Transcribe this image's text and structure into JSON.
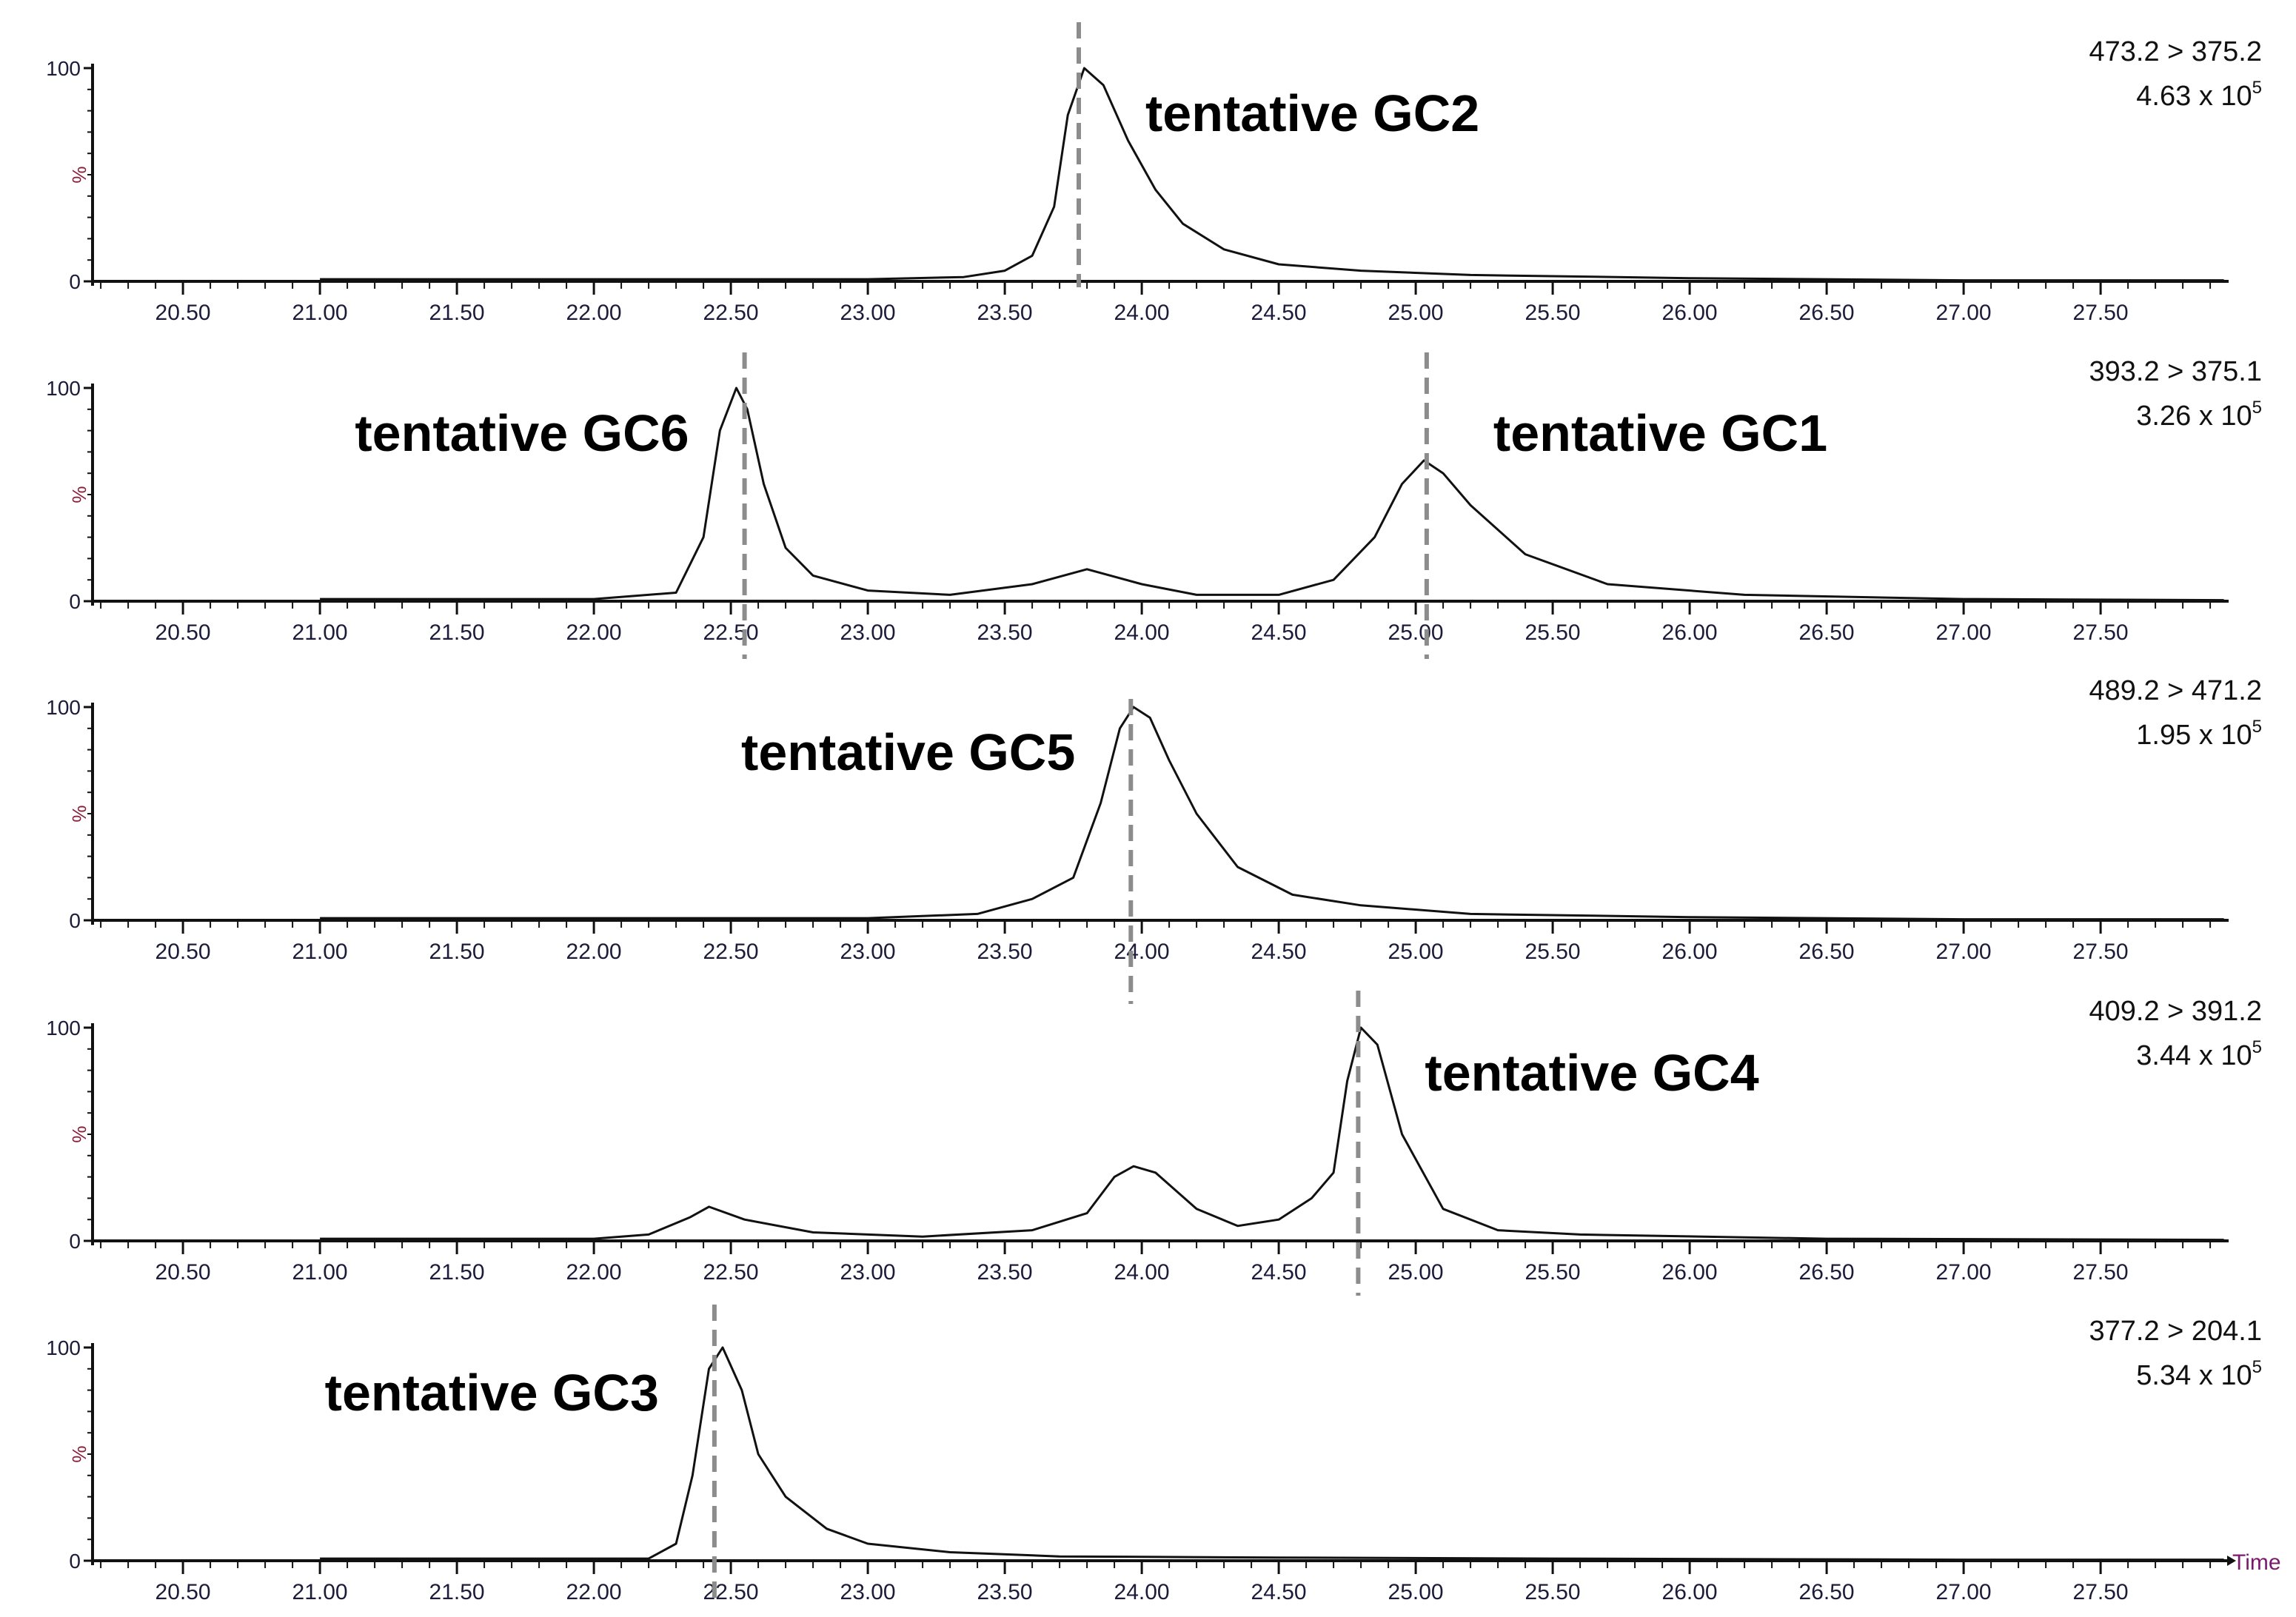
{
  "chart_data": [
    {
      "type": "line",
      "panel": 1,
      "transition": "473.2 > 375.2",
      "intensity_base": "4.63 x 10",
      "intensity_exp": "5",
      "ylabel": "%",
      "y_ticks": [
        "0",
        "100"
      ],
      "ylim": [
        0,
        100
      ],
      "xlim": [
        20.17,
        27.97
      ],
      "x_ticks": [
        "20.50",
        "21.00",
        "21.50",
        "22.00",
        "22.50",
        "23.00",
        "23.50",
        "24.00",
        "24.50",
        "25.00",
        "25.50",
        "26.00",
        "26.50",
        "27.00",
        "27.50"
      ],
      "x": [
        21.0,
        23.0,
        23.35,
        23.5,
        23.6,
        23.68,
        23.73,
        23.79,
        23.86,
        23.95,
        24.05,
        24.15,
        24.3,
        24.5,
        24.8,
        25.2,
        26.0,
        27.0,
        27.95
      ],
      "y": [
        1,
        1,
        2,
        5,
        12,
        35,
        78,
        100,
        92,
        66,
        43,
        27,
        15,
        8,
        5,
        3,
        1.5,
        0.5,
        0.5
      ],
      "markers": [
        {
          "x": 23.77,
          "label": "tentative GC2",
          "label_pos": "right"
        }
      ]
    },
    {
      "type": "line",
      "panel": 2,
      "transition": "393.2 > 375.1",
      "intensity_base": "3.26 x 10",
      "intensity_exp": "5",
      "ylabel": "%",
      "y_ticks": [
        "0",
        "100"
      ],
      "ylim": [
        0,
        100
      ],
      "xlim": [
        20.17,
        27.97
      ],
      "x_ticks": [
        "20.50",
        "21.00",
        "21.50",
        "22.00",
        "22.50",
        "23.00",
        "23.50",
        "24.00",
        "24.50",
        "25.00",
        "25.50",
        "26.00",
        "26.50",
        "27.00",
        "27.50"
      ],
      "x": [
        21.0,
        22.0,
        22.3,
        22.4,
        22.46,
        22.52,
        22.56,
        22.62,
        22.7,
        22.8,
        23.0,
        23.3,
        23.6,
        23.8,
        24.0,
        24.2,
        24.5,
        24.7,
        24.85,
        24.95,
        25.03,
        25.1,
        25.2,
        25.4,
        25.7,
        26.2,
        27.0,
        27.95
      ],
      "y": [
        1,
        1,
        4,
        30,
        80,
        100,
        90,
        55,
        25,
        12,
        5,
        3,
        8,
        15,
        8,
        3,
        3,
        10,
        30,
        55,
        66,
        60,
        45,
        22,
        8,
        3,
        1,
        0.5
      ],
      "markers": [
        {
          "x": 22.55,
          "label": "tentative GC6",
          "label_pos": "left"
        },
        {
          "x": 25.04,
          "label": "tentative GC1",
          "label_pos": "right"
        }
      ]
    },
    {
      "type": "line",
      "panel": 3,
      "transition": "489.2 > 471.2",
      "intensity_base": "1.95 x 10",
      "intensity_exp": "5",
      "ylabel": "%",
      "y_ticks": [
        "0",
        "100"
      ],
      "ylim": [
        0,
        100
      ],
      "xlim": [
        20.17,
        27.97
      ],
      "x_ticks": [
        "20.50",
        "21.00",
        "21.50",
        "22.00",
        "22.50",
        "23.00",
        "23.50",
        "24.00",
        "24.50",
        "25.00",
        "25.50",
        "26.00",
        "26.50",
        "27.00",
        "27.50"
      ],
      "x": [
        21.0,
        23.0,
        23.4,
        23.6,
        23.75,
        23.85,
        23.92,
        23.97,
        24.03,
        24.1,
        24.2,
        24.35,
        24.55,
        24.8,
        25.2,
        26.0,
        27.0,
        27.95
      ],
      "y": [
        1,
        1,
        3,
        10,
        20,
        55,
        90,
        100,
        95,
        75,
        50,
        25,
        12,
        7,
        3,
        1.5,
        0.5,
        0.5
      ],
      "markers": [
        {
          "x": 23.96,
          "label": "tentative GC5",
          "label_pos": "left"
        }
      ]
    },
    {
      "type": "line",
      "panel": 4,
      "transition": "409.2 > 391.2",
      "intensity_base": "3.44 x 10",
      "intensity_exp": "5",
      "ylabel": "%",
      "y_ticks": [
        "0",
        "100"
      ],
      "ylim": [
        0,
        100
      ],
      "xlim": [
        20.17,
        27.97
      ],
      "x_ticks": [
        "20.50",
        "21.00",
        "21.50",
        "22.00",
        "22.50",
        "23.00",
        "23.50",
        "24.00",
        "24.50",
        "25.00",
        "25.50",
        "26.00",
        "26.50",
        "27.00",
        "27.50"
      ],
      "x": [
        21.0,
        22.0,
        22.2,
        22.35,
        22.42,
        22.55,
        22.8,
        23.2,
        23.6,
        23.8,
        23.9,
        23.97,
        24.05,
        24.2,
        24.35,
        24.5,
        24.62,
        24.7,
        24.75,
        24.8,
        24.86,
        24.95,
        25.1,
        25.3,
        25.6,
        26.5,
        27.95
      ],
      "y": [
        1,
        1,
        3,
        11,
        16,
        10,
        4,
        2,
        5,
        13,
        30,
        35,
        32,
        15,
        7,
        10,
        20,
        32,
        75,
        100,
        92,
        50,
        15,
        5,
        3,
        1,
        0.5
      ],
      "markers": [
        {
          "x": 24.79,
          "label": "tentative GC4",
          "label_pos": "right"
        }
      ]
    },
    {
      "type": "line",
      "panel": 5,
      "transition": "377.2 > 204.1",
      "intensity_base": "5.34 x 10",
      "intensity_exp": "5",
      "ylabel": "%",
      "y_ticks": [
        "0",
        "100"
      ],
      "ylim": [
        0,
        100
      ],
      "xlim": [
        20.17,
        27.97
      ],
      "x_ticks": [
        "20.50",
        "21.00",
        "21.50",
        "22.00",
        "22.50",
        "23.00",
        "23.50",
        "24.00",
        "24.50",
        "25.00",
        "25.50",
        "26.00",
        "26.50",
        "27.00",
        "27.50"
      ],
      "x": [
        21.0,
        22.2,
        22.3,
        22.36,
        22.42,
        22.47,
        22.54,
        22.6,
        22.7,
        22.85,
        23.0,
        23.3,
        23.7,
        24.5,
        25.5,
        27.0,
        27.95
      ],
      "y": [
        1,
        1,
        8,
        40,
        90,
        100,
        80,
        50,
        30,
        15,
        8,
        4,
        2,
        1.5,
        1,
        0.5,
        0.5
      ],
      "xlabel": "Time",
      "markers": [
        {
          "x": 22.44,
          "label": "tentative GC3",
          "label_pos": "left"
        }
      ]
    }
  ]
}
